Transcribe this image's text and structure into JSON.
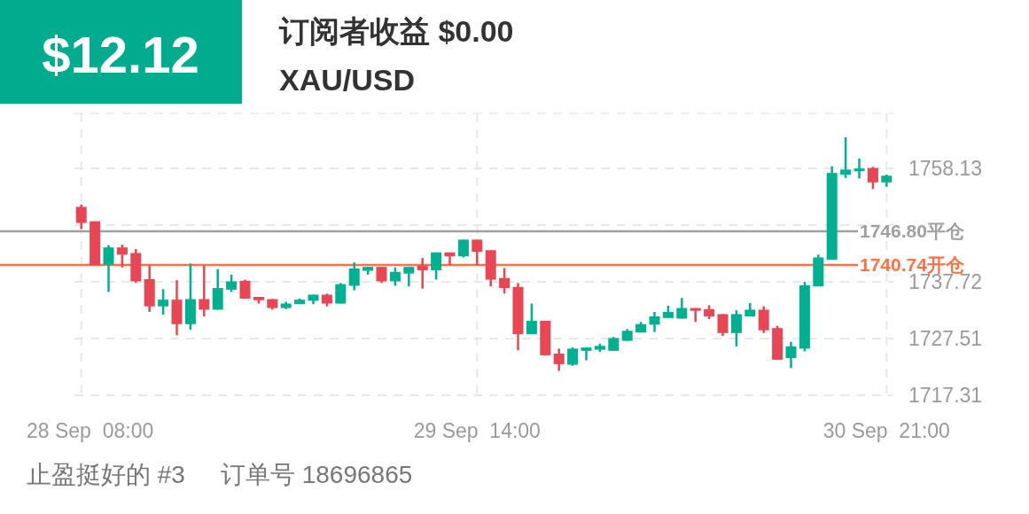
{
  "chart_data": {
    "type": "candlestick",
    "title": "订阅者收益 $0.00",
    "subtitle": "XAU/USD",
    "annotations": [
      "$12.12",
      "止盈挺好的 #3",
      "订单号 18696865"
    ],
    "categories": [
      "28 Sep  08:00",
      null,
      null,
      null,
      null,
      null,
      null,
      null,
      null,
      null,
      null,
      null,
      null,
      null,
      null,
      null,
      null,
      null,
      null,
      null,
      null,
      null,
      null,
      null,
      null,
      null,
      null,
      null,
      null,
      "29 Sep  14:00",
      null,
      null,
      null,
      null,
      null,
      null,
      null,
      null,
      null,
      null,
      null,
      null,
      null,
      null,
      null,
      null,
      null,
      null,
      null,
      null,
      null,
      null,
      null,
      null,
      null,
      null,
      null,
      null,
      null,
      "30 Sep  21:00"
    ],
    "ohlc": [
      [
        1751.2,
        1751.6,
        1747.2,
        1748.3
      ],
      [
        1748.6,
        1748.6,
        1740.7,
        1740.7
      ],
      [
        1740.8,
        1744.3,
        1735.9,
        1743.9
      ],
      [
        1743.9,
        1744.4,
        1740.3,
        1742.6
      ],
      [
        1742.9,
        1743.6,
        1737.5,
        1737.8
      ],
      [
        1738.2,
        1740.6,
        1732.3,
        1733.3
      ],
      [
        1733.3,
        1736.4,
        1731.8,
        1734.5
      ],
      [
        1734.5,
        1738.0,
        1728.1,
        1730.1
      ],
      [
        1730.1,
        1741.0,
        1729.1,
        1734.6
      ],
      [
        1734.6,
        1740.6,
        1731.5,
        1732.7
      ],
      [
        1732.7,
        1740.0,
        1732.7,
        1736.6
      ],
      [
        1736.3,
        1739.0,
        1735.9,
        1737.8
      ],
      [
        1737.9,
        1738.1,
        1734.7,
        1734.7
      ],
      [
        1735.0,
        1735.0,
        1733.8,
        1734.4
      ],
      [
        1734.6,
        1734.6,
        1732.7,
        1733.0
      ],
      [
        1733.0,
        1734.1,
        1732.8,
        1733.8
      ],
      [
        1733.7,
        1734.7,
        1733.7,
        1734.5
      ],
      [
        1734.3,
        1735.4,
        1733.7,
        1735.4
      ],
      [
        1735.4,
        1735.6,
        1733.3,
        1733.8
      ],
      [
        1733.8,
        1737.5,
        1733.8,
        1737.3
      ],
      [
        1737.0,
        1741.2,
        1736.2,
        1740.1
      ],
      [
        1739.7,
        1740.4,
        1739.0,
        1740.4
      ],
      [
        1740.4,
        1740.4,
        1737.5,
        1737.8
      ],
      [
        1737.8,
        1740.3,
        1737.0,
        1739.5
      ],
      [
        1739.2,
        1740.4,
        1736.9,
        1740.4
      ],
      [
        1740.6,
        1742.0,
        1736.5,
        1739.8
      ],
      [
        1739.8,
        1743.0,
        1738.1,
        1743.0
      ],
      [
        1743.0,
        1743.0,
        1740.7,
        1742.3
      ],
      [
        1742.3,
        1745.3,
        1742.1,
        1745.3
      ],
      [
        1745.3,
        1745.3,
        1740.7,
        1743.1
      ],
      [
        1743.4,
        1743.4,
        1736.9,
        1738.1
      ],
      [
        1738.4,
        1740.2,
        1735.6,
        1736.6
      ],
      [
        1736.8,
        1737.5,
        1725.4,
        1728.3
      ],
      [
        1728.3,
        1733.8,
        1728.3,
        1730.7
      ],
      [
        1730.7,
        1730.7,
        1724.5,
        1724.5
      ],
      [
        1724.8,
        1725.7,
        1721.7,
        1722.9
      ],
      [
        1722.8,
        1725.9,
        1722.6,
        1725.7
      ],
      [
        1725.3,
        1725.9,
        1723.6,
        1725.9
      ],
      [
        1725.5,
        1726.6,
        1725.1,
        1726.2
      ],
      [
        1725.3,
        1727.8,
        1725.3,
        1727.6
      ],
      [
        1727.1,
        1729.2,
        1727.1,
        1728.9
      ],
      [
        1728.6,
        1730.5,
        1728.6,
        1730.1
      ],
      [
        1730.0,
        1732.3,
        1728.7,
        1731.5
      ],
      [
        1731.2,
        1733.4,
        1731.2,
        1732.3
      ],
      [
        1731.1,
        1734.8,
        1731.1,
        1733.0
      ],
      [
        1733.0,
        1733.0,
        1730.5,
        1732.5
      ],
      [
        1732.8,
        1733.5,
        1731.0,
        1731.5
      ],
      [
        1731.9,
        1731.9,
        1728.0,
        1728.5
      ],
      [
        1728.5,
        1732.6,
        1726.1,
        1731.9
      ],
      [
        1731.5,
        1733.9,
        1731.5,
        1732.7
      ],
      [
        1732.7,
        1733.3,
        1728.5,
        1729.0
      ],
      [
        1729.4,
        1729.8,
        1723.7,
        1723.7
      ],
      [
        1724.0,
        1726.9,
        1722.2,
        1726.1
      ],
      [
        1725.7,
        1737.7,
        1725.2,
        1737.1
      ],
      [
        1736.9,
        1742.6,
        1736.9,
        1742.1
      ],
      [
        1741.7,
        1758.5,
        1741.7,
        1757.3
      ],
      [
        1757.0,
        1763.7,
        1756.4,
        1757.9
      ],
      [
        1757.6,
        1759.9,
        1756.3,
        1758.1
      ],
      [
        1758.2,
        1758.4,
        1754.4,
        1755.6
      ],
      [
        1755.6,
        1757.0,
        1754.8,
        1756.8
      ]
    ],
    "colors": [
      "#e84653",
      "#e84653",
      "#00b091",
      "#e84653",
      "#e84653",
      "#e84653",
      "#00b091",
      "#e84653",
      "#00b091",
      "#e84653",
      "#00b091",
      "#00b091",
      "#e84653",
      "#e84653",
      "#e84653",
      "#00b091",
      "#00b091",
      "#00b091",
      "#e84653",
      "#00b091",
      "#00b091",
      "#00b091",
      "#e84653",
      "#00b091",
      "#00b091",
      "#e84653",
      "#00b091",
      "#e84653",
      "#00b091",
      "#e84653",
      "#e84653",
      "#e84653",
      "#e84653",
      "#00b091",
      "#e84653",
      "#e84653",
      "#00b091",
      "#00b091",
      "#00b091",
      "#00b091",
      "#00b091",
      "#00b091",
      "#00b091",
      "#00b091",
      "#00b091",
      "#e84653",
      "#e84653",
      "#e84653",
      "#00b091",
      "#00b091",
      "#e84653",
      "#e84653",
      "#00b091",
      "#00b091",
      "#00b091",
      "#00b091",
      "#00b091",
      "#00b091",
      "#e84653",
      "#00b091"
    ],
    "ylim": [
      1717.31,
      1768.0
    ],
    "yticks": [
      1717.31,
      1727.51,
      1737.72,
      {
        "value": 1747.92,
        "label": null
      },
      1758.13
    ],
    "ref_lines": [
      {
        "axis": "y",
        "value": 1746.8,
        "label": "1746.80平仓",
        "color": "#a0a0a0"
      },
      {
        "axis": "y",
        "value": 1740.74,
        "label": "1740.74开仓",
        "color": "#ff7043"
      }
    ],
    "grid": true
  }
}
